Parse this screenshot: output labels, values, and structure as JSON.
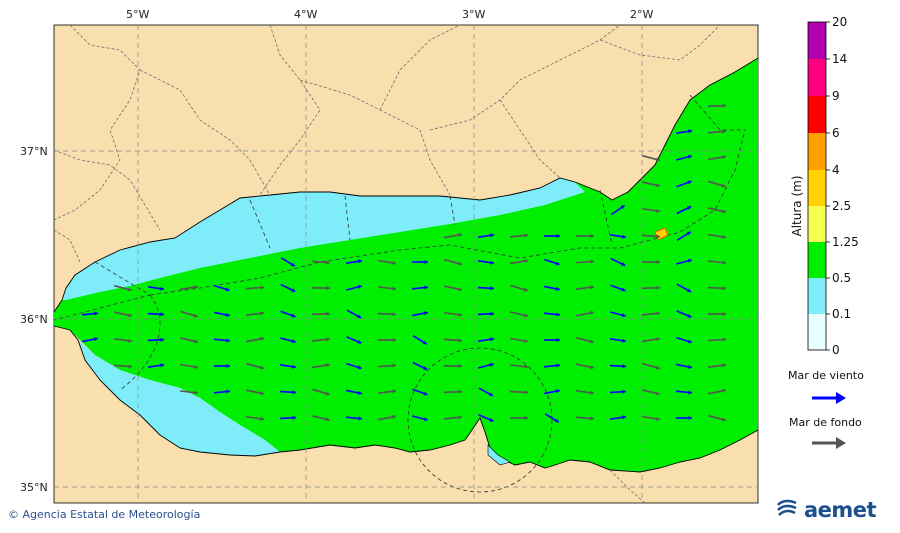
{
  "map": {
    "lon_ticks": [
      "5°W",
      "4°W",
      "3°W",
      "2°W"
    ],
    "lat_ticks": [
      "37°N",
      "36°N",
      "35°N"
    ]
  },
  "colorbar": {
    "title": "Altura (m)",
    "levels": [
      "0",
      "0.1",
      "0.5",
      "1.25",
      "2.5",
      "4",
      "6",
      "9",
      "14",
      "20"
    ],
    "colors": [
      "#e8ffff",
      "#7fecfa",
      "#00ee00",
      "#f5ff50",
      "#ffd200",
      "#ffa000",
      "#ff0000",
      "#ff0080",
      "#b000b0"
    ]
  },
  "legend": {
    "wind_sea": {
      "label": "Mar de viento",
      "color": "#0000ff"
    },
    "swell": {
      "label": "Mar de fondo",
      "color": "#555555"
    }
  },
  "footer": {
    "credit": "© Agencia Estatal de Meteorología",
    "logo": "aemet"
  },
  "colors": {
    "land": "#f9deae",
    "sea_green": "#00ee00",
    "sea_cyan": "#7fecfa",
    "border": "#777777"
  }
}
